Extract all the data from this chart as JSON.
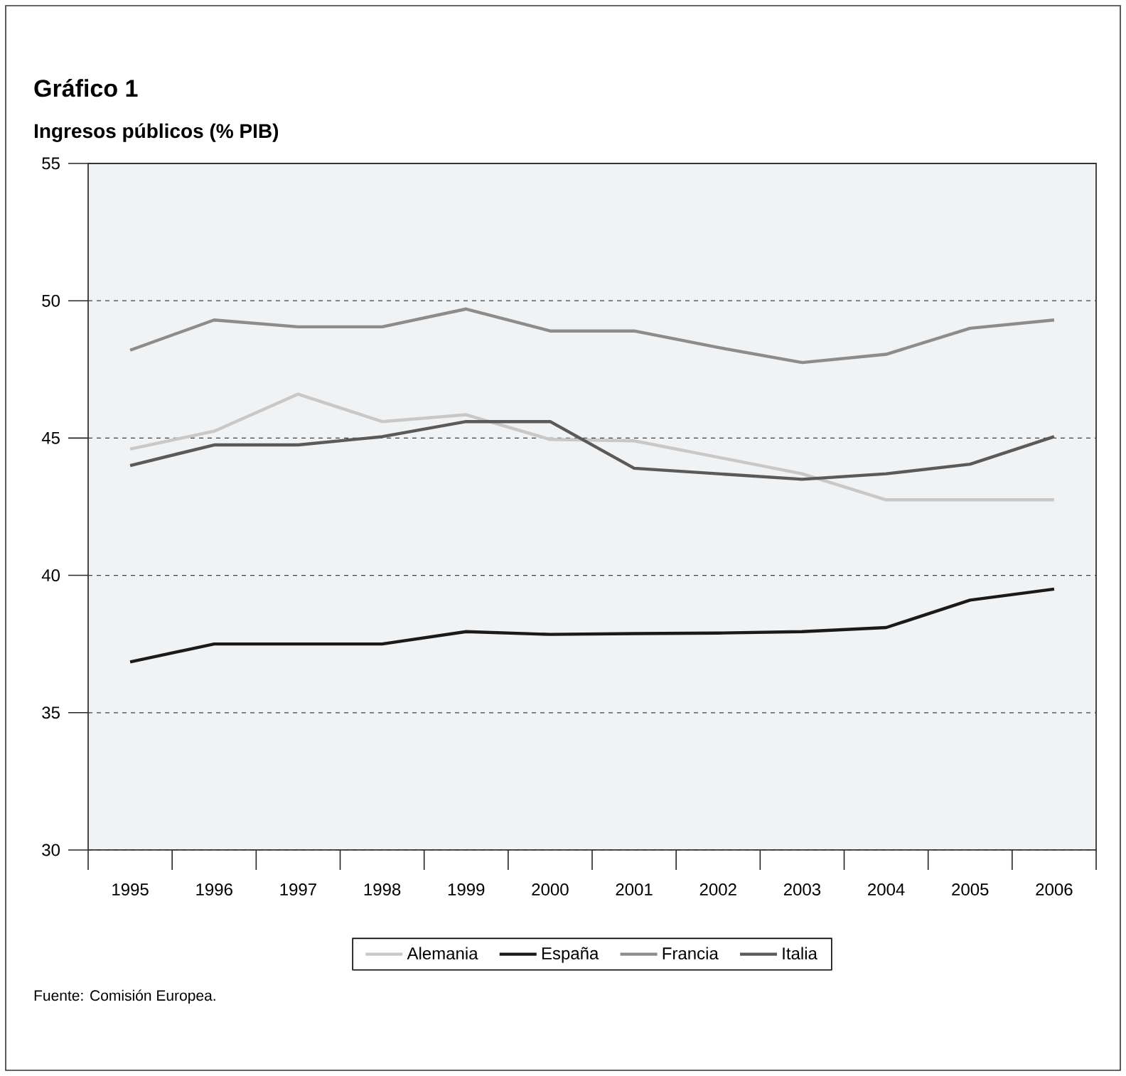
{
  "chart_data": {
    "type": "line",
    "title": "Gráfico 1",
    "subtitle": "Ingresos públicos (% PIB)",
    "categories": [
      "1995",
      "1996",
      "1997",
      "1998",
      "1999",
      "2000",
      "2001",
      "2002",
      "2003",
      "2004",
      "2005",
      "2006"
    ],
    "series": [
      {
        "name": "Alemania",
        "color": "#c8c8c8",
        "values": [
          44.6,
          45.25,
          46.6,
          45.6,
          45.85,
          44.95,
          44.9,
          44.3,
          43.7,
          42.75,
          42.75,
          42.75
        ]
      },
      {
        "name": "España",
        "color": "#1a1a1a",
        "values": [
          36.85,
          37.5,
          37.5,
          37.5,
          37.95,
          37.85,
          37.88,
          37.9,
          37.95,
          38.1,
          39.1,
          39.5
        ]
      },
      {
        "name": "Francia",
        "color": "#8c8c8c",
        "values": [
          48.2,
          49.3,
          49.05,
          49.05,
          49.7,
          48.9,
          48.9,
          48.3,
          47.75,
          48.05,
          49.0,
          49.3
        ]
      },
      {
        "name": "Italia",
        "color": "#5a5a5a",
        "values": [
          44.0,
          44.75,
          44.75,
          45.05,
          45.6,
          45.6,
          43.9,
          43.7,
          43.5,
          43.7,
          44.05,
          45.05
        ]
      }
    ],
    "ylim": [
      30,
      55
    ],
    "yticks": [
      30,
      35,
      40,
      45,
      50,
      55
    ],
    "grid": "y",
    "legend": "bottom",
    "marker": "none",
    "line_style": "solid",
    "annotations": [
      "Fuente: Comisión Europea."
    ]
  }
}
